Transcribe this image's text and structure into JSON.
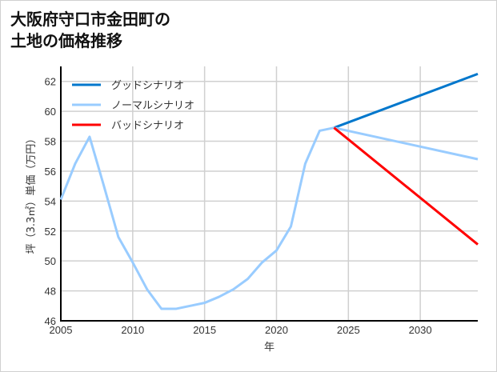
{
  "chart_data": {
    "type": "line",
    "title": "大阪府守口市金田町の\n土地の価格推移",
    "xlabel": "年",
    "ylabel": "坪（3.3㎡）単価（万円）",
    "xlim": [
      2005,
      2034
    ],
    "ylim": [
      46,
      63
    ],
    "xticks": [
      2005,
      2010,
      2015,
      2020,
      2025,
      2030
    ],
    "yticks": [
      46,
      48,
      50,
      52,
      54,
      56,
      58,
      60,
      62
    ],
    "grid": true,
    "legend_position": "top-left",
    "series": [
      {
        "name": "グッドシナリオ",
        "color": "#0077cc",
        "x": [
          2024,
          2034
        ],
        "y": [
          58.9,
          62.5
        ]
      },
      {
        "name": "ノーマルシナリオ",
        "color": "#99ccff",
        "x": [
          2005,
          2006,
          2007,
          2008,
          2009,
          2010,
          2011,
          2012,
          2013,
          2014,
          2015,
          2016,
          2017,
          2018,
          2019,
          2020,
          2021,
          2022,
          2023,
          2024,
          2034
        ],
        "y": [
          54.1,
          56.5,
          58.3,
          55.0,
          51.6,
          49.9,
          48.1,
          46.8,
          46.8,
          47.0,
          47.2,
          47.6,
          48.1,
          48.8,
          49.9,
          50.7,
          52.3,
          56.5,
          58.7,
          58.9,
          56.8
        ]
      },
      {
        "name": "バッドシナリオ",
        "color": "#ff0000",
        "x": [
          2024,
          2034
        ],
        "y": [
          58.9,
          51.1
        ]
      }
    ]
  }
}
